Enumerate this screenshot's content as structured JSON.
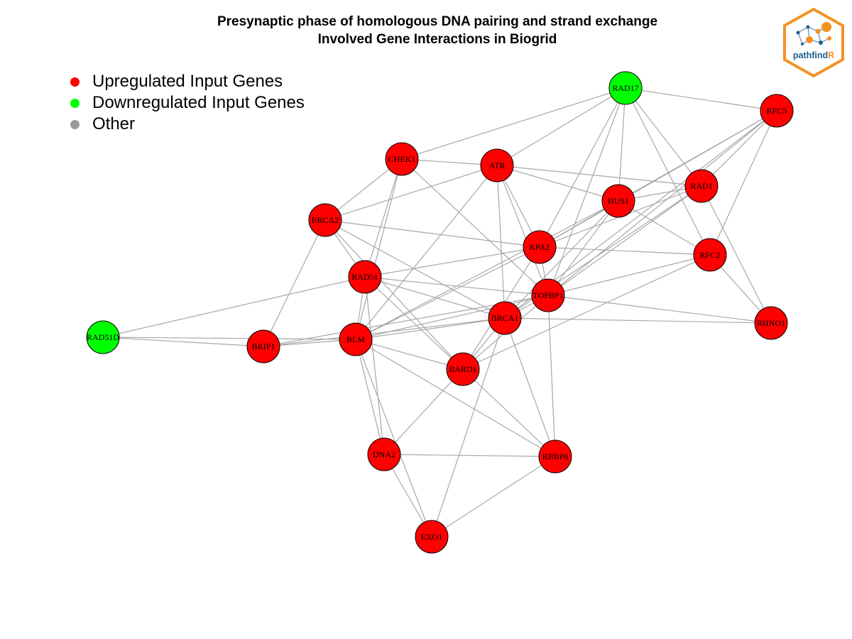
{
  "title": {
    "line1": "Presynaptic phase of homologous DNA pairing and strand exchange",
    "line2": "Involved Gene Interactions in Biogrid"
  },
  "legend": [
    {
      "label": "Upregulated Input Genes",
      "color": "#ff0000"
    },
    {
      "label": "Downregulated Input Genes",
      "color": "#00ff00"
    },
    {
      "label": "Other",
      "color": "#999999"
    }
  ],
  "logo": {
    "text_main": "pathfind",
    "text_accent": "R",
    "border_color": "#f39223",
    "accent_color": "#f39223",
    "text_color": "#1c5f8a"
  },
  "colors": {
    "up": "#ff0000",
    "down": "#00ff00",
    "edge": "#a8a8a8"
  },
  "nodes": [
    {
      "id": "RAD17",
      "status": "down"
    },
    {
      "id": "RFC5",
      "status": "up"
    },
    {
      "id": "CHEK1",
      "status": "up"
    },
    {
      "id": "ATR",
      "status": "up"
    },
    {
      "id": "RAD1",
      "status": "up"
    },
    {
      "id": "HUS1",
      "status": "up"
    },
    {
      "id": "BRCA2",
      "status": "up"
    },
    {
      "id": "RPA2",
      "status": "up"
    },
    {
      "id": "RFC2",
      "status": "up"
    },
    {
      "id": "RAD51",
      "status": "up"
    },
    {
      "id": "TOPBP1",
      "status": "up"
    },
    {
      "id": "BRCA1",
      "status": "up"
    },
    {
      "id": "RHNO1",
      "status": "up"
    },
    {
      "id": "RAD51D",
      "status": "down"
    },
    {
      "id": "BRIP1",
      "status": "up"
    },
    {
      "id": "BLM",
      "status": "up"
    },
    {
      "id": "BARD1",
      "status": "up"
    },
    {
      "id": "DNA2",
      "status": "up"
    },
    {
      "id": "RBBP8",
      "status": "up"
    },
    {
      "id": "EXO1",
      "status": "up"
    }
  ],
  "edges": [
    [
      "RAD17",
      "RFC5"
    ],
    [
      "RAD17",
      "CHEK1"
    ],
    [
      "RAD17",
      "ATR"
    ],
    [
      "RAD17",
      "HUS1"
    ],
    [
      "RAD17",
      "RAD1"
    ],
    [
      "RAD17",
      "RFC2"
    ],
    [
      "RAD17",
      "RPA2"
    ],
    [
      "RAD17",
      "TOPBP1"
    ],
    [
      "RFC5",
      "HUS1"
    ],
    [
      "RFC5",
      "RAD1"
    ],
    [
      "RFC5",
      "RFC2"
    ],
    [
      "RFC5",
      "RPA2"
    ],
    [
      "RFC5",
      "TOPBP1"
    ],
    [
      "RFC5",
      "BRCA1"
    ],
    [
      "CHEK1",
      "ATR"
    ],
    [
      "CHEK1",
      "BRCA2"
    ],
    [
      "CHEK1",
      "RAD51"
    ],
    [
      "CHEK1",
      "TOPBP1"
    ],
    [
      "CHEK1",
      "BLM"
    ],
    [
      "ATR",
      "RAD1"
    ],
    [
      "ATR",
      "HUS1"
    ],
    [
      "ATR",
      "RPA2"
    ],
    [
      "ATR",
      "TOPBP1"
    ],
    [
      "ATR",
      "BRCA1"
    ],
    [
      "ATR",
      "BRCA2"
    ],
    [
      "ATR",
      "BLM"
    ],
    [
      "RAD1",
      "HUS1"
    ],
    [
      "RAD1",
      "RPA2"
    ],
    [
      "RAD1",
      "TOPBP1"
    ],
    [
      "RAD1",
      "RHNO1"
    ],
    [
      "RAD1",
      "BRCA1"
    ],
    [
      "HUS1",
      "RPA2"
    ],
    [
      "HUS1",
      "TOPBP1"
    ],
    [
      "HUS1",
      "RFC2"
    ],
    [
      "HUS1",
      "BRCA1"
    ],
    [
      "HUS1",
      "BLM"
    ],
    [
      "BRCA2",
      "RPA2"
    ],
    [
      "BRCA2",
      "RAD51"
    ],
    [
      "BRCA2",
      "BRIP1"
    ],
    [
      "BRCA2",
      "BRCA1"
    ],
    [
      "BRCA2",
      "BARD1"
    ],
    [
      "RPA2",
      "RAD51"
    ],
    [
      "RPA2",
      "RFC2"
    ],
    [
      "RPA2",
      "TOPBP1"
    ],
    [
      "RPA2",
      "BLM"
    ],
    [
      "RPA2",
      "BARD1"
    ],
    [
      "RFC2",
      "RHNO1"
    ],
    [
      "RFC2",
      "TOPBP1"
    ],
    [
      "RFC2",
      "BARD1"
    ],
    [
      "RAD51",
      "TOPBP1"
    ],
    [
      "RAD51",
      "BRCA1"
    ],
    [
      "RAD51",
      "RAD51D"
    ],
    [
      "RAD51",
      "BLM"
    ],
    [
      "RAD51",
      "BARD1"
    ],
    [
      "RAD51",
      "DNA2"
    ],
    [
      "TOPBP1",
      "BRCA1"
    ],
    [
      "TOPBP1",
      "RHNO1"
    ],
    [
      "TOPBP1",
      "BLM"
    ],
    [
      "TOPBP1",
      "BARD1"
    ],
    [
      "TOPBP1",
      "RBBP8"
    ],
    [
      "BRCA1",
      "RHNO1"
    ],
    [
      "BRCA1",
      "BRIP1"
    ],
    [
      "BRCA1",
      "BLM"
    ],
    [
      "BRCA1",
      "BARD1"
    ],
    [
      "BRCA1",
      "RBBP8"
    ],
    [
      "BRCA1",
      "EXO1"
    ],
    [
      "RAD51D",
      "BRIP1"
    ],
    [
      "RAD51D",
      "BLM"
    ],
    [
      "BRIP1",
      "BLM"
    ],
    [
      "BRIP1",
      "TOPBP1"
    ],
    [
      "BLM",
      "BARD1"
    ],
    [
      "BLM",
      "DNA2"
    ],
    [
      "BLM",
      "EXO1"
    ],
    [
      "BLM",
      "RBBP8"
    ],
    [
      "BARD1",
      "DNA2"
    ],
    [
      "BARD1",
      "RBBP8"
    ],
    [
      "DNA2",
      "RBBP8"
    ],
    [
      "DNA2",
      "EXO1"
    ],
    [
      "RBBP8",
      "EXO1"
    ]
  ]
}
